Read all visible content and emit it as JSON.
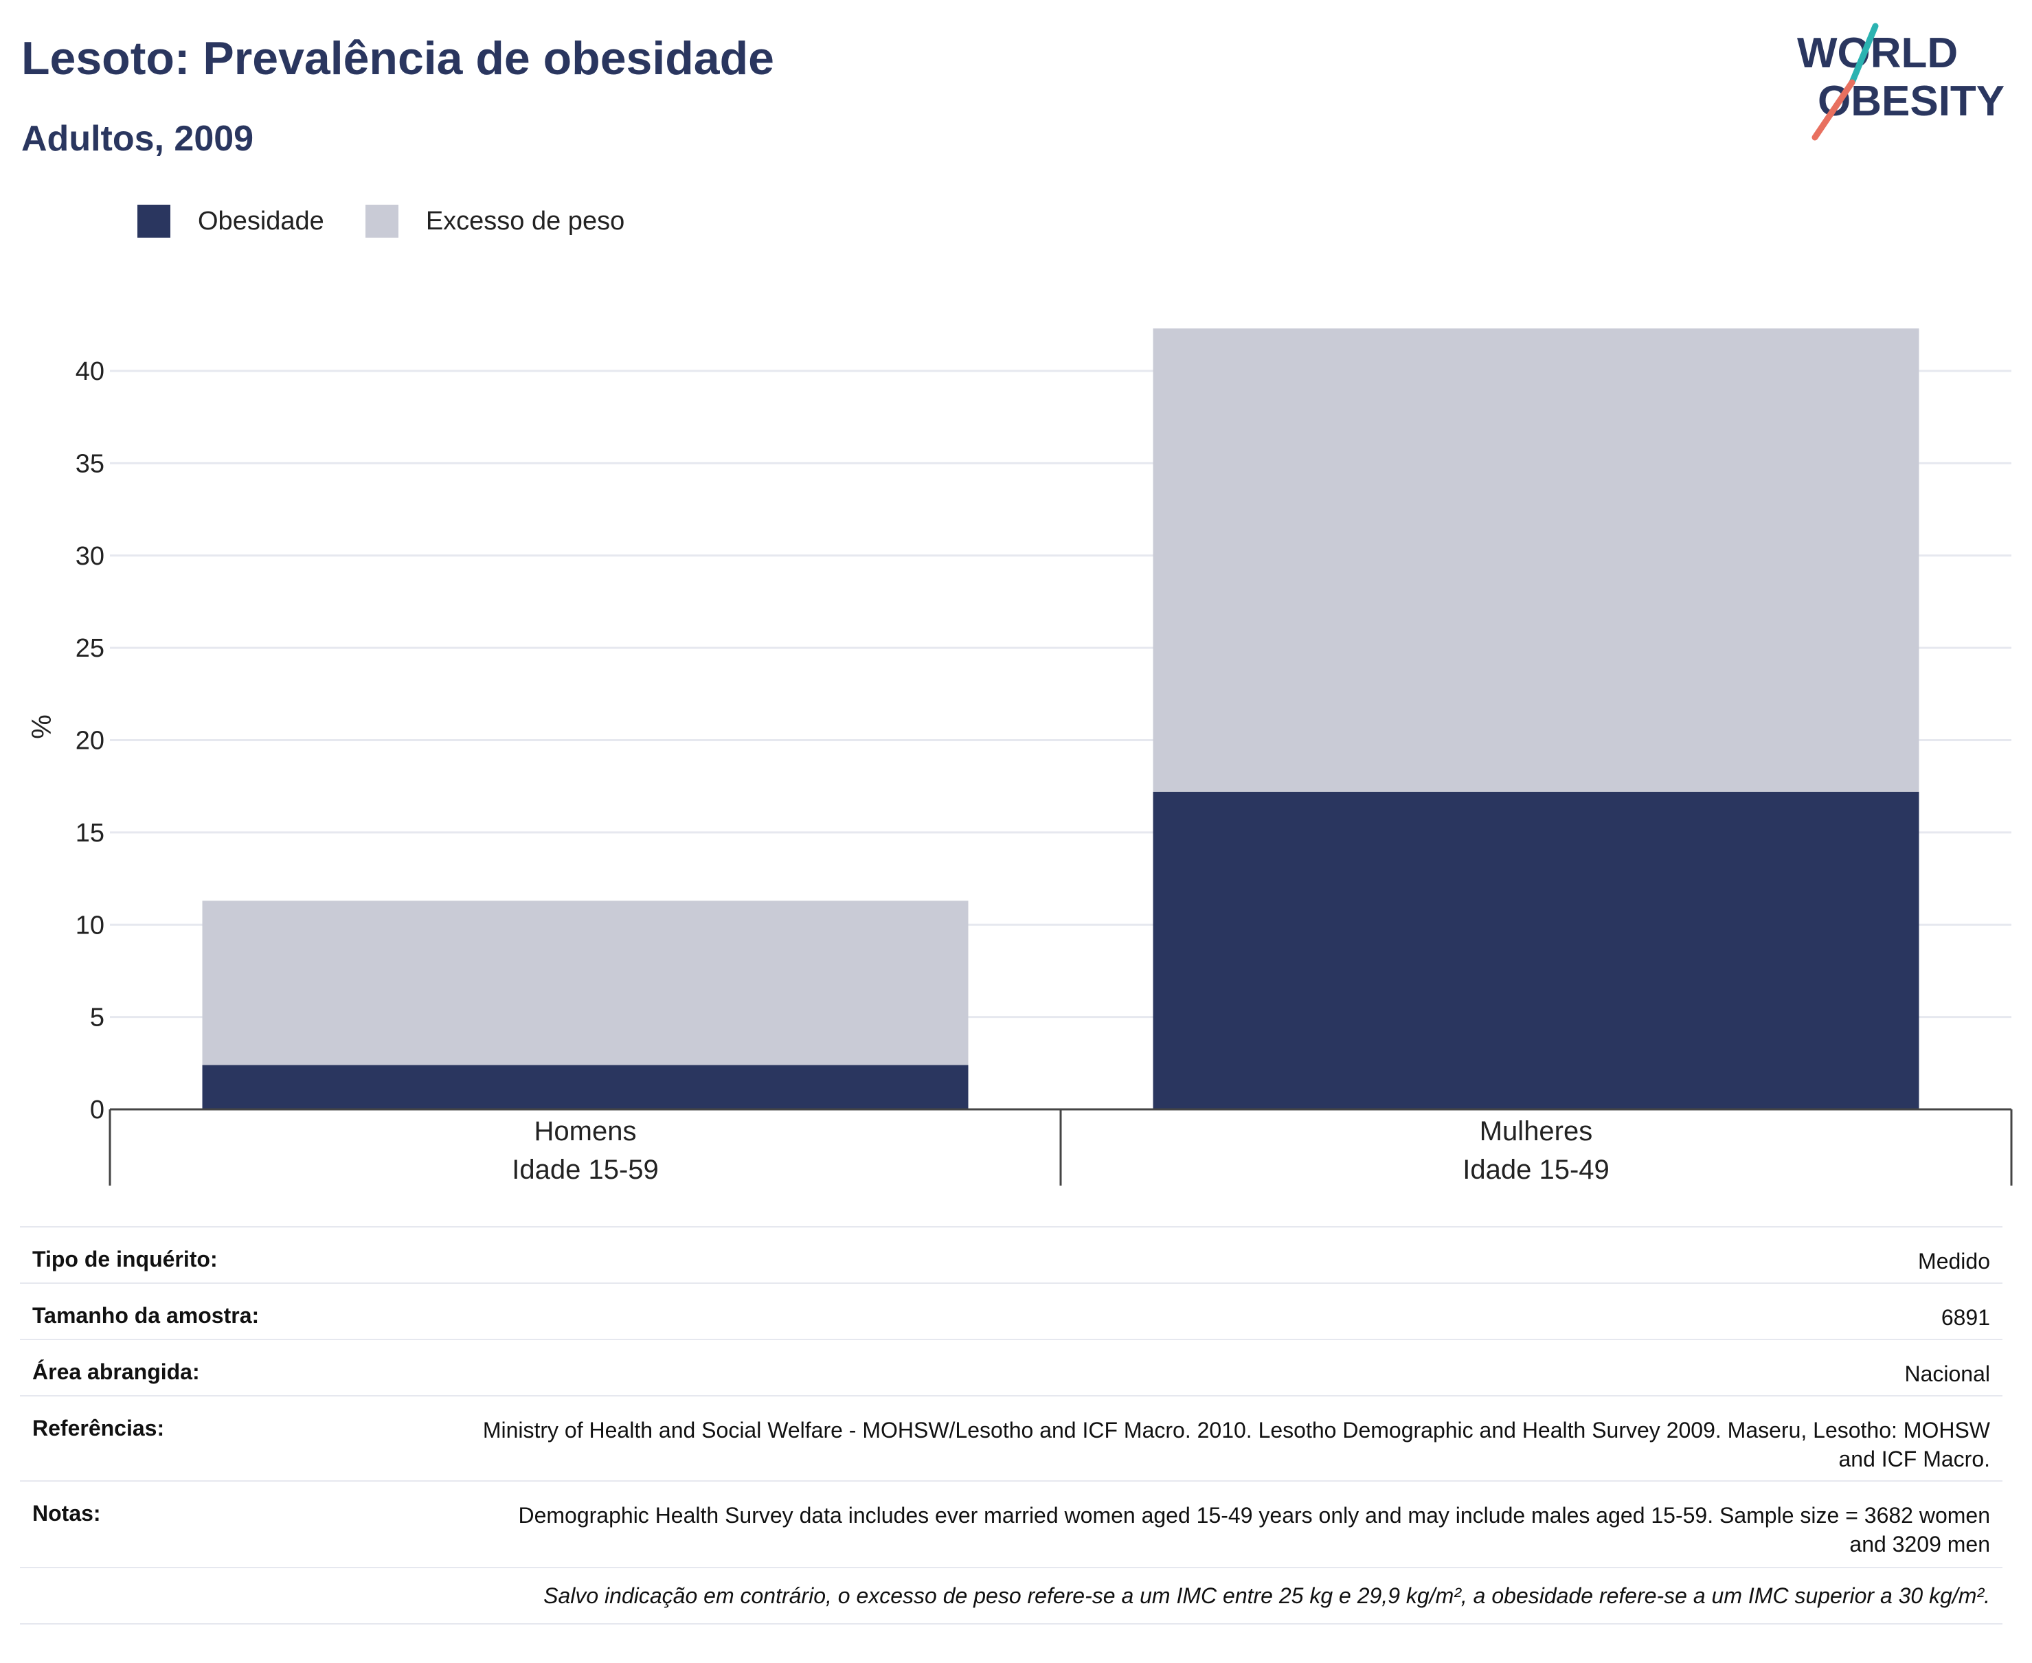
{
  "header": {
    "title": "Lesoto: Prevalência de obesidade",
    "subtitle": "Adultos, 2009"
  },
  "logo": {
    "line1": "WORLD",
    "line2": "OBESITY"
  },
  "colors": {
    "obesity": "#2a365f",
    "overweight": "#c9cbd6",
    "text": "#2a365f",
    "accent_teal": "#2bb3b1",
    "accent_coral": "#e8705f"
  },
  "chart_data": {
    "type": "bar",
    "stacked": true,
    "categories": [
      {
        "line1": "Homens",
        "line2": "Idade 15-59"
      },
      {
        "line1": "Mulheres",
        "line2": "Idade 15-49"
      }
    ],
    "series": [
      {
        "name": "Obesidade",
        "values": [
          2.4,
          17.2
        ]
      },
      {
        "name": "Excesso de peso",
        "values": [
          8.9,
          25.1
        ]
      }
    ],
    "ylabel": "%",
    "ylim": [
      0,
      42.5
    ],
    "yticks": [
      0,
      5,
      10,
      15,
      20,
      25,
      30,
      35,
      40
    ],
    "grid": true,
    "legend_position": "top-left"
  },
  "meta": {
    "rows": [
      {
        "key": "Tipo de inquérito:",
        "value": "Medido"
      },
      {
        "key": "Tamanho da amostra:",
        "value": "6891"
      },
      {
        "key": "Área abrangida:",
        "value": "Nacional"
      },
      {
        "key": "Referências:",
        "value": "Ministry of Health and Social Welfare - MOHSW/Lesotho and ICF Macro. 2010. Lesotho Demographic and Health Survey 2009. Maseru, Lesotho: MOHSW and ICF Macro."
      },
      {
        "key": "Notas:",
        "value": "Demographic Health Survey data includes ever married women aged 15-49 years only and may include males aged 15-59. Sample size = 3682 women and 3209 men"
      }
    ],
    "footnote": "Salvo indicação em contrário, o excesso de peso refere-se a um IMC entre 25 kg e 29,9 kg/m², a obesidade refere-se a um IMC superior a 30 kg/m²."
  }
}
